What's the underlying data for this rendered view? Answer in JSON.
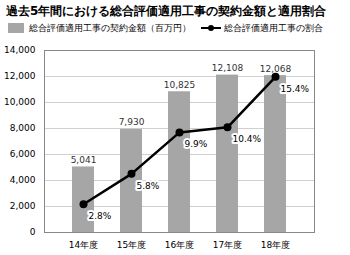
{
  "chart_data": {
    "type": "bar",
    "title": "過去5年間における総合評価適用工事の契約金額と適用割合",
    "categories": [
      "14年度",
      "15年度",
      "16年度",
      "17年度",
      "18年度"
    ],
    "series": [
      {
        "name": "総合評価適用工事の契約金額（百万円）",
        "type": "bar",
        "color": "#a6a6a6",
        "values": [
          5041,
          7930,
          10825,
          12108,
          12068
        ],
        "value_labels": [
          "5,041",
          "7,930",
          "10,825",
          "12,108",
          "12,068"
        ]
      },
      {
        "name": "総合評価適用工事の割合",
        "type": "line",
        "color": "#000000",
        "marker": "circle",
        "axis": "y2",
        "values": [
          2.8,
          5.8,
          9.9,
          10.4,
          15.4
        ],
        "value_labels": [
          "2.8%",
          "5.8%",
          "9.9%",
          "10.4%",
          "15.4%"
        ]
      }
    ],
    "ylim": [
      0,
      14000
    ],
    "yticks": [
      0,
      {
        "value": 2000,
        "label": "2,000"
      },
      {
        "value": 4000,
        "label": "4,000"
      },
      {
        "value": 6000,
        "label": "6,000"
      },
      {
        "value": 8000,
        "label": "8,000"
      },
      {
        "value": 10000,
        "label": "10,000"
      },
      {
        "value": 12000,
        "label": "12,000"
      },
      {
        "value": 14000,
        "label": "14,000"
      }
    ],
    "y2lim": [
      0,
      18
    ],
    "y2ticks": [],
    "grid": true,
    "data_labels": true,
    "legend": "top-left"
  }
}
